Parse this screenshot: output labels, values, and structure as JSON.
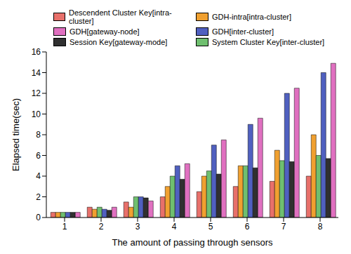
{
  "chart_data": {
    "type": "bar",
    "x_label": "The amount of passing through sensors",
    "y_label": "Elapsed time(sec)",
    "categories": [
      "1",
      "2",
      "3",
      "4",
      "5",
      "6",
      "7",
      "8"
    ],
    "series": [
      {
        "name": "Descendent Cluster Key[intra-cluster]",
        "color": "#e8706a",
        "values": [
          0.5,
          1,
          1.5,
          2,
          2.5,
          3,
          3.5,
          4
        ]
      },
      {
        "name": "GDH-intra[intra-cluster]",
        "color": "#f0a030",
        "values": [
          0.5,
          0.8,
          1,
          3,
          4,
          5,
          6.5,
          8
        ]
      },
      {
        "name": "System Cluster Key[inter-cluster]",
        "color": "#6fbf6f",
        "values": [
          0.5,
          1,
          2,
          4,
          4.5,
          5,
          5.5,
          6
        ]
      },
      {
        "name": "GDH[inter-cluster]",
        "color": "#5060c0",
        "values": [
          0.5,
          0.8,
          2,
          5,
          7,
          9,
          12,
          14
        ]
      },
      {
        "name": "Session Key[gateway-mode]",
        "color": "#303030",
        "values": [
          0.5,
          0.7,
          1.9,
          3.7,
          4.2,
          4.8,
          5.4,
          5.7
        ]
      },
      {
        "name": "GDH[gateway-node]",
        "color": "#e070c0",
        "values": [
          0.5,
          1,
          1.6,
          5.2,
          7.5,
          9.6,
          12.5,
          14.9
        ]
      }
    ],
    "ylim": [
      0,
      16
    ],
    "yticks": [
      0,
      2,
      4,
      6,
      8,
      10,
      12,
      14,
      16
    ],
    "grid": false,
    "legend": "top"
  }
}
